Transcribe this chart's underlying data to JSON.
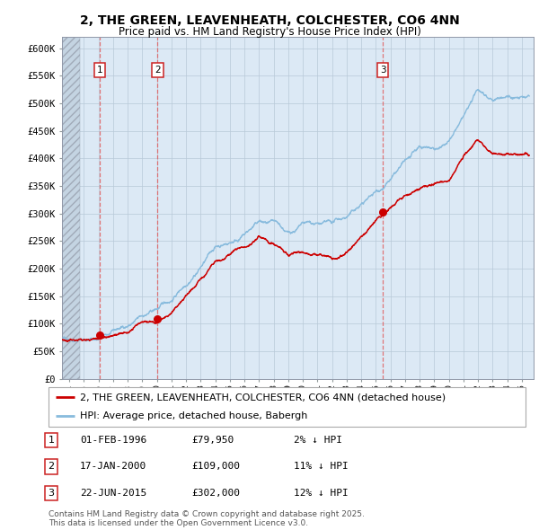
{
  "title": "2, THE GREEN, LEAVENHEATH, COLCHESTER, CO6 4NN",
  "subtitle": "Price paid vs. HM Land Registry's House Price Index (HPI)",
  "ylabel_vals": [
    "£0",
    "£50K",
    "£100K",
    "£150K",
    "£200K",
    "£250K",
    "£300K",
    "£350K",
    "£400K",
    "£450K",
    "£500K",
    "£550K",
    "£600K"
  ],
  "ylim": [
    0,
    620000
  ],
  "xlim_start": 1993.5,
  "xlim_end": 2025.8,
  "background_color": "#ffffff",
  "plot_bg_color": "#dce9f5",
  "grid_color": "#b8c8d8",
  "red_line_color": "#cc0000",
  "blue_line_color": "#88bbdd",
  "marker_color": "#cc0000",
  "dashed_line_color": "#e06060",
  "legend_label_red": "2, THE GREEN, LEAVENHEATH, COLCHESTER, CO6 4NN (detached house)",
  "legend_label_blue": "HPI: Average price, detached house, Babergh",
  "sale1_date": 1996.08,
  "sale1_price": 79950,
  "sale1_label": "1",
  "sale2_date": 2000.04,
  "sale2_price": 109000,
  "sale2_label": "2",
  "sale3_date": 2015.47,
  "sale3_price": 302000,
  "sale3_label": "3",
  "hpi_anchors": [
    [
      1993.5,
      72000
    ],
    [
      1994.0,
      75000
    ],
    [
      1995.0,
      78000
    ],
    [
      1996.0,
      80000
    ],
    [
      1997.0,
      88000
    ],
    [
      1998.0,
      98000
    ],
    [
      1999.0,
      112000
    ],
    [
      2000.0,
      122000
    ],
    [
      2001.0,
      138000
    ],
    [
      2002.0,
      172000
    ],
    [
      2003.0,
      208000
    ],
    [
      2004.0,
      242000
    ],
    [
      2005.0,
      252000
    ],
    [
      2006.0,
      268000
    ],
    [
      2007.0,
      288000
    ],
    [
      2008.0,
      275000
    ],
    [
      2009.0,
      248000
    ],
    [
      2010.0,
      262000
    ],
    [
      2011.0,
      258000
    ],
    [
      2012.0,
      252000
    ],
    [
      2013.0,
      262000
    ],
    [
      2014.0,
      282000
    ],
    [
      2015.0,
      305000
    ],
    [
      2016.0,
      328000
    ],
    [
      2017.0,
      352000
    ],
    [
      2018.0,
      368000
    ],
    [
      2019.0,
      372000
    ],
    [
      2020.0,
      378000
    ],
    [
      2021.0,
      418000
    ],
    [
      2022.0,
      462000
    ],
    [
      2023.0,
      450000
    ],
    [
      2024.0,
      455000
    ],
    [
      2025.5,
      450000
    ]
  ],
  "red_anchors": [
    [
      1993.5,
      72000
    ],
    [
      1994.0,
      74000
    ],
    [
      1995.0,
      76000
    ],
    [
      1996.08,
      79950
    ],
    [
      1997.0,
      84000
    ],
    [
      1998.0,
      92000
    ],
    [
      1999.0,
      104000
    ],
    [
      2000.04,
      109000
    ],
    [
      2001.0,
      124000
    ],
    [
      2002.0,
      152000
    ],
    [
      2003.0,
      182000
    ],
    [
      2004.0,
      212000
    ],
    [
      2005.0,
      222000
    ],
    [
      2006.0,
      232000
    ],
    [
      2007.0,
      252000
    ],
    [
      2008.0,
      245000
    ],
    [
      2009.0,
      222000
    ],
    [
      2010.0,
      232000
    ],
    [
      2011.0,
      228000
    ],
    [
      2012.0,
      225000
    ],
    [
      2013.0,
      238000
    ],
    [
      2014.0,
      262000
    ],
    [
      2015.47,
      302000
    ],
    [
      2016.0,
      312000
    ],
    [
      2017.0,
      332000
    ],
    [
      2018.0,
      348000
    ],
    [
      2019.0,
      352000
    ],
    [
      2020.0,
      358000
    ],
    [
      2021.0,
      395000
    ],
    [
      2022.0,
      432000
    ],
    [
      2023.0,
      415000
    ],
    [
      2024.0,
      418000
    ],
    [
      2025.5,
      412000
    ]
  ],
  "table_rows": [
    [
      "1",
      "01-FEB-1996",
      "£79,950",
      "2% ↓ HPI"
    ],
    [
      "2",
      "17-JAN-2000",
      "£109,000",
      "11% ↓ HPI"
    ],
    [
      "3",
      "22-JUN-2015",
      "£302,000",
      "12% ↓ HPI"
    ]
  ],
  "footer": "Contains HM Land Registry data © Crown copyright and database right 2025.\nThis data is licensed under the Open Government Licence v3.0.",
  "title_fontsize": 10,
  "subtitle_fontsize": 8.5,
  "axis_fontsize": 7.5,
  "legend_fontsize": 8,
  "table_fontsize": 8,
  "footer_fontsize": 6.5
}
